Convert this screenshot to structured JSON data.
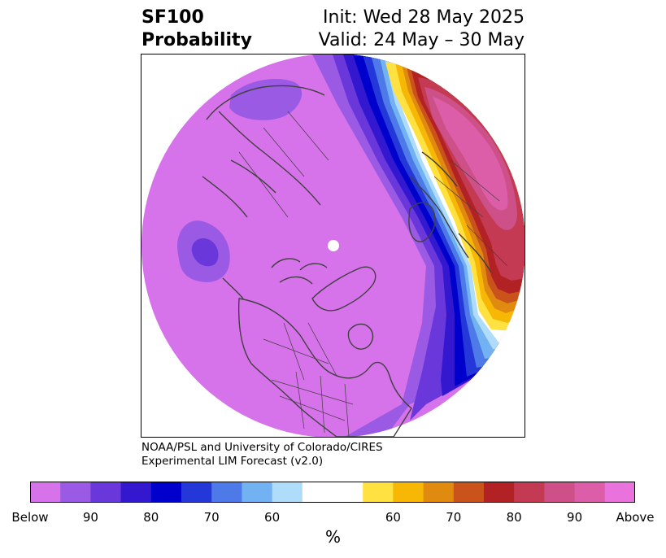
{
  "title": {
    "variable": "SF100",
    "subtitle": "Probability",
    "init": "Init: Wed 28 May 2025",
    "valid": "Valid: 24 May – 30 May"
  },
  "credit": {
    "line1": "NOAA/PSL and University of Colorado/CIRES",
    "line2": "Experimental LIM Forecast (v2.0)"
  },
  "colorbar": {
    "colors": [
      "#d672ea",
      "#9a5ae3",
      "#6a37db",
      "#3318d0",
      "#0000cc",
      "#2438d9",
      "#4d7ae8",
      "#72b1f2",
      "#aedcfa",
      "#ffffff",
      "#ffffff",
      "#ffe142",
      "#f6b705",
      "#e08a10",
      "#c9531a",
      "#b22225",
      "#c33a52",
      "#cd5088",
      "#dc5ea8",
      "#ea72dc"
    ],
    "ticks": [
      "Below",
      "90",
      "80",
      "70",
      "60",
      "60",
      "70",
      "80",
      "90",
      "Above"
    ],
    "unit": "%"
  },
  "map": {
    "projection": "north-polar-stereographic",
    "background_category": "Below",
    "colors": {
      "coast": "#404040",
      "light_purple": "#d672ea",
      "medium_purple": "#9a5ae3",
      "dark_purple": "#6a37db",
      "deep_blue": "#3318d0",
      "blue": "#0000cc",
      "royal_blue": "#2438d9",
      "cornflower": "#4d7ae8",
      "sky": "#72b1f2",
      "pale_blue": "#aedcfa",
      "yellow": "#ffe142",
      "gold": "#f6b705",
      "orange": "#e08a10",
      "rust": "#c9531a",
      "red": "#b22225",
      "crimson": "#c33a52",
      "rose": "#cd5088",
      "pink": "#dc5ea8"
    }
  }
}
